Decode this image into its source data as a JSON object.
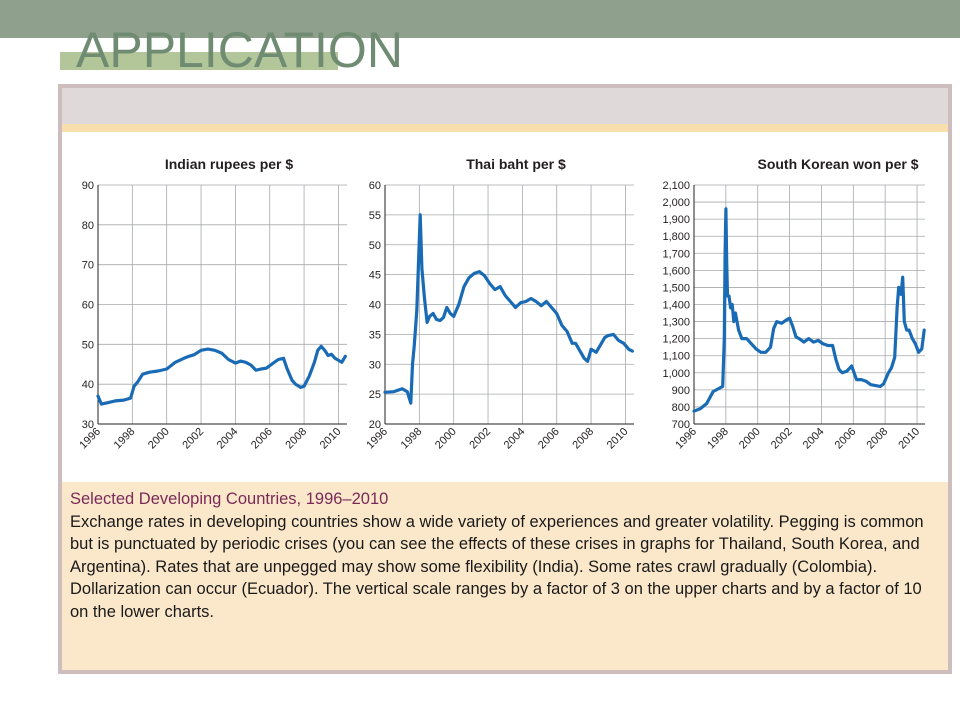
{
  "slide": {
    "title": "APPLICATION"
  },
  "caption": {
    "title": "Selected Developing Countries, 1996–2010",
    "body": "Exchange rates in developing countries show a wide variety of experiences and greater volatility. Pegging is common but is punctuated by periodic crises (you can see the effects of these crises in graphs for Thailand, South Korea, and Argentina). Rates that are unpegged may show some flexibility (India). Some rates crawl gradually (Colombia). Dollarization can occur (Ecuador). The vertical scale ranges by a factor of 3 on the upper charts and by a factor of 10 on the lower charts."
  },
  "colors": {
    "series": "#1a6bb5",
    "accent": "#6f8b72",
    "caption_title": "#7a2a58"
  },
  "chart_data": [
    {
      "type": "line",
      "title": "Indian rupees per $",
      "xlim": [
        1996,
        2010.5
      ],
      "ylim": [
        30,
        90
      ],
      "x_ticks": [
        "1996",
        "1998",
        "2000",
        "2002",
        "2004",
        "2006",
        "2008",
        "2010"
      ],
      "y_ticks": [
        "30",
        "40",
        "50",
        "60",
        "70",
        "80",
        "90"
      ],
      "grid": true,
      "x": [
        1996.0,
        1996.2,
        1996.5,
        1997.0,
        1997.5,
        1997.9,
        1998.1,
        1998.3,
        1998.6,
        1999.0,
        1999.5,
        2000.0,
        2000.5,
        2001.0,
        2001.3,
        2001.6,
        2002.0,
        2002.4,
        2002.8,
        2003.2,
        2003.6,
        2004.0,
        2004.3,
        2004.6,
        2004.9,
        2005.2,
        2005.5,
        2005.8,
        2006.2,
        2006.5,
        2006.8,
        2007.0,
        2007.3,
        2007.5,
        2007.8,
        2008.0,
        2008.3,
        2008.6,
        2008.8,
        2009.0,
        2009.2,
        2009.4,
        2009.6,
        2009.8,
        2010.0,
        2010.2,
        2010.4
      ],
      "y": [
        37.0,
        35.0,
        35.3,
        35.8,
        36.0,
        36.5,
        39.5,
        40.5,
        42.5,
        43.0,
        43.3,
        43.8,
        45.5,
        46.5,
        47.0,
        47.4,
        48.5,
        48.8,
        48.5,
        47.8,
        46.2,
        45.3,
        45.8,
        45.5,
        44.8,
        43.5,
        43.8,
        44.0,
        45.3,
        46.2,
        46.5,
        44.0,
        41.0,
        40.0,
        39.2,
        39.5,
        42.0,
        45.5,
        48.5,
        49.5,
        48.5,
        47.2,
        47.5,
        46.5,
        46.0,
        45.5,
        47.0
      ]
    },
    {
      "type": "line",
      "title": "Thai baht per $",
      "xlim": [
        1996,
        2010.5
      ],
      "ylim": [
        20,
        60
      ],
      "x_ticks": [
        "1996",
        "1998",
        "2000",
        "2002",
        "2004",
        "2006",
        "2008",
        "2010"
      ],
      "y_ticks": [
        "20",
        "25",
        "30",
        "35",
        "40",
        "45",
        "50",
        "55",
        "60"
      ],
      "grid": true,
      "x": [
        1996.0,
        1996.5,
        1997.0,
        1997.3,
        1997.5,
        1997.6,
        1997.7,
        1997.85,
        1997.95,
        1998.05,
        1998.15,
        1998.3,
        1998.45,
        1998.6,
        1998.8,
        1999.0,
        1999.2,
        1999.4,
        1999.6,
        1999.8,
        2000.0,
        2000.3,
        2000.6,
        2000.9,
        2001.2,
        2001.5,
        2001.8,
        2002.1,
        2002.4,
        2002.7,
        2003.0,
        2003.3,
        2003.6,
        2003.9,
        2004.2,
        2004.5,
        2004.8,
        2005.1,
        2005.4,
        2005.7,
        2006.0,
        2006.3,
        2006.6,
        2006.9,
        2007.1,
        2007.3,
        2007.6,
        2007.8,
        2008.0,
        2008.3,
        2008.6,
        2008.8,
        2009.0,
        2009.3,
        2009.6,
        2009.9,
        2010.2,
        2010.4
      ],
      "y": [
        25.3,
        25.4,
        25.9,
        25.4,
        23.5,
        30.0,
        33.0,
        39.0,
        47.0,
        55.0,
        46.0,
        41.0,
        37.0,
        38.0,
        38.5,
        37.5,
        37.3,
        37.8,
        39.5,
        38.5,
        38.0,
        40.0,
        43.0,
        44.5,
        45.2,
        45.5,
        44.8,
        43.5,
        42.5,
        43.0,
        41.5,
        40.5,
        39.5,
        40.3,
        40.5,
        41.0,
        40.5,
        39.8,
        40.5,
        39.5,
        38.5,
        36.5,
        35.5,
        33.5,
        33.5,
        32.5,
        31.0,
        30.5,
        32.5,
        32.0,
        33.5,
        34.5,
        34.8,
        35.0,
        34.0,
        33.5,
        32.5,
        32.2
      ]
    },
    {
      "type": "line",
      "title": "South Korean won  per $",
      "xlim": [
        1996,
        2010.5
      ],
      "ylim": [
        700,
        2100
      ],
      "x_ticks": [
        "1996",
        "1998",
        "2000",
        "2002",
        "2004",
        "2006",
        "2008",
        "2010"
      ],
      "y_ticks": [
        "700",
        "800",
        "900",
        "1,000",
        "1,100",
        "1,200",
        "1,300",
        "1,400",
        "1,500",
        "1,600",
        "1,700",
        "1,800",
        "1,900",
        "2,000",
        "2,100"
      ],
      "grid": true,
      "x": [
        1996.0,
        1996.4,
        1996.8,
        1997.2,
        1997.6,
        1997.8,
        1997.9,
        1997.95,
        1998.0,
        1998.05,
        1998.1,
        1998.2,
        1998.3,
        1998.4,
        1998.5,
        1998.6,
        1998.8,
        1999.0,
        1999.3,
        1999.6,
        1999.9,
        2000.2,
        2000.5,
        2000.8,
        2001.0,
        2001.2,
        2001.5,
        2001.8,
        2002.0,
        2002.2,
        2002.4,
        2002.6,
        2002.9,
        2003.2,
        2003.5,
        2003.8,
        2004.1,
        2004.4,
        2004.7,
        2004.9,
        2005.1,
        2005.3,
        2005.6,
        2005.9,
        2006.2,
        2006.5,
        2006.8,
        2007.1,
        2007.4,
        2007.7,
        2007.9,
        2008.2,
        2008.4,
        2008.6,
        2008.75,
        2008.85,
        2009.0,
        2009.1,
        2009.2,
        2009.35,
        2009.5,
        2009.7,
        2009.9,
        2010.1,
        2010.3,
        2010.45
      ],
      "y": [
        775,
        790,
        820,
        890,
        910,
        920,
        1200,
        1700,
        1960,
        1650,
        1450,
        1450,
        1380,
        1400,
        1300,
        1350,
        1250,
        1200,
        1200,
        1170,
        1140,
        1120,
        1120,
        1150,
        1260,
        1300,
        1290,
        1310,
        1320,
        1270,
        1210,
        1200,
        1180,
        1200,
        1180,
        1190,
        1170,
        1160,
        1160,
        1080,
        1020,
        1000,
        1010,
        1040,
        960,
        960,
        950,
        930,
        925,
        920,
        935,
        1000,
        1030,
        1090,
        1380,
        1500,
        1460,
        1560,
        1300,
        1250,
        1250,
        1200,
        1170,
        1120,
        1140,
        1250
      ]
    }
  ]
}
